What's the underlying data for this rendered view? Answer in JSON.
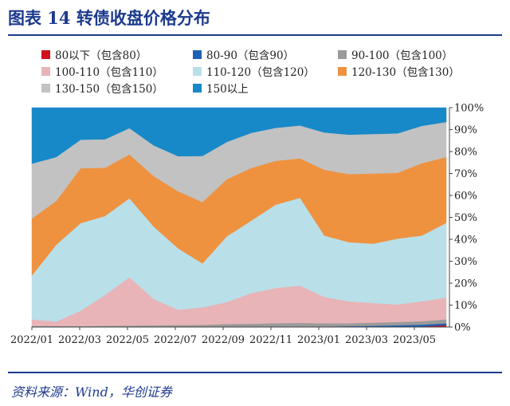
{
  "page": {
    "title": "图表 14 转债收盘价格分布",
    "source": "资料来源：Wind，华创证券"
  },
  "chart_data": {
    "type": "area",
    "stacked": true,
    "percent": true,
    "ylim": [
      0,
      100
    ],
    "y_ticks": [
      "0%",
      "10%",
      "20%",
      "30%",
      "40%",
      "50%",
      "60%",
      "70%",
      "80%",
      "90%",
      "100%"
    ],
    "y_axis_side": "right",
    "x_ticks": [
      "2022/01",
      "2022/03",
      "2022/05",
      "2022/07",
      "2022/09",
      "2022/11",
      "2023/01",
      "2023/03",
      "2023/05"
    ],
    "x": [
      "2022/01",
      "2022/02",
      "2022/03",
      "2022/04",
      "2022/05",
      "2022/06",
      "2022/07",
      "2022/08",
      "2022/09",
      "2022/10",
      "2022/11",
      "2022/12",
      "2023/01",
      "2023/02",
      "2023/03",
      "2023/04",
      "2023/05",
      "2023/06"
    ],
    "series": [
      {
        "name": "80以下（包含80）",
        "color": "#d0101b",
        "values": [
          0,
          0,
          0,
          0,
          0,
          0,
          0,
          0,
          0,
          0,
          0,
          0,
          0,
          0,
          0.1,
          0.2,
          0.3,
          0.8
        ]
      },
      {
        "name": "80-90（包含90）",
        "color": "#1f5fb5",
        "values": [
          0.1,
          0.1,
          0.1,
          0.1,
          0.1,
          0.1,
          0.1,
          0.1,
          0.2,
          0.2,
          0.3,
          0.3,
          0.3,
          0.4,
          0.5,
          0.6,
          0.8,
          0.9
        ]
      },
      {
        "name": "90-100（包含100）",
        "color": "#9a9a9a",
        "values": [
          0.4,
          0.4,
          0.3,
          0.5,
          0.6,
          0.7,
          0.8,
          0.9,
          1.2,
          1.3,
          1.5,
          1.6,
          1.4,
          1.3,
          1.4,
          1.5,
          1.6,
          1.8
        ]
      },
      {
        "name": "100-110（包含110）",
        "color": "#e8b4b7",
        "values": [
          3,
          2,
          7,
          14,
          22,
          12,
          7,
          8,
          10,
          14,
          16,
          17,
          12,
          10,
          9,
          8,
          9,
          10
        ]
      },
      {
        "name": "110-120（包含120）",
        "color": "#b9dfe9",
        "values": [
          20,
          35,
          40,
          36,
          36,
          33,
          28,
          20,
          30,
          33,
          38,
          40,
          28,
          27,
          27,
          30,
          30,
          34
        ]
      },
      {
        "name": "120-130（包含130）",
        "color": "#ee9240",
        "values": [
          26,
          20,
          25,
          22,
          20,
          23,
          26,
          28,
          26,
          24,
          20,
          18,
          30,
          31,
          32,
          30,
          33,
          30
        ]
      },
      {
        "name": "130-150（包含150）",
        "color": "#c2c2c2",
        "values": [
          25,
          20,
          13,
          13,
          12,
          14,
          16,
          21,
          17,
          16,
          15,
          15,
          17,
          18,
          18,
          18,
          17,
          16
        ]
      },
      {
        "name": "150以上",
        "color": "#1889c8",
        "values": [
          25.5,
          22.5,
          14.6,
          14.4,
          9.3,
          17.2,
          22.1,
          22,
          15.6,
          11.5,
          9.2,
          8.1,
          11.3,
          12.3,
          12,
          11.7,
          8.3,
          6.5
        ]
      }
    ]
  }
}
